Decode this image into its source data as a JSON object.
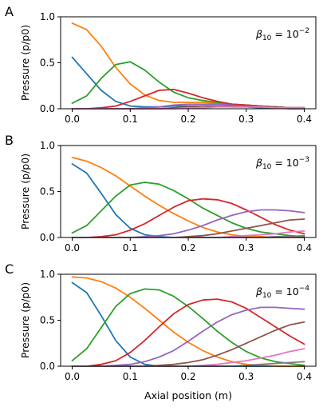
{
  "figure": {
    "shared_xlabel": "Axial position (m)",
    "ylabel": "Pressure (p/p0)"
  },
  "chart_data": [
    {
      "panel_label": "A",
      "type": "line",
      "annotation": {
        "base": "β",
        "sub": "10",
        "eq": " = 10",
        "sup": "−2"
      },
      "xlim": [
        0,
        0.4
      ],
      "ylim": [
        0,
        1.0
      ],
      "xticks": [
        "0.0",
        "0.1",
        "0.2",
        "0.3",
        "0.4"
      ],
      "yticks": [
        "0.0",
        "0.5",
        "1.0"
      ],
      "grid": false,
      "x": [
        0,
        0.025,
        0.05,
        0.075,
        0.1,
        0.125,
        0.15,
        0.175,
        0.2,
        0.225,
        0.25,
        0.275,
        0.3,
        0.325,
        0.35,
        0.375,
        0.4
      ],
      "series": [
        {
          "color": "#1f77b4",
          "values": [
            0.56,
            0.38,
            0.2,
            0.08,
            0.03,
            0.02,
            0.02,
            0.03,
            0.03,
            0.03,
            0.03,
            0.02,
            0.02,
            0.01,
            0.01,
            0.0,
            0.0
          ]
        },
        {
          "color": "#ff7f0e",
          "values": [
            0.93,
            0.86,
            0.68,
            0.45,
            0.27,
            0.15,
            0.09,
            0.07,
            0.07,
            0.07,
            0.06,
            0.05,
            0.04,
            0.03,
            0.02,
            0.01,
            0.01
          ]
        },
        {
          "color": "#2ca02c",
          "values": [
            0.06,
            0.14,
            0.33,
            0.48,
            0.51,
            0.42,
            0.29,
            0.18,
            0.12,
            0.09,
            0.07,
            0.05,
            0.04,
            0.03,
            0.02,
            0.01,
            0.01
          ]
        },
        {
          "color": "#d62728",
          "values": [
            0.0,
            0.0,
            0.01,
            0.03,
            0.08,
            0.14,
            0.2,
            0.21,
            0.17,
            0.12,
            0.08,
            0.05,
            0.04,
            0.03,
            0.02,
            0.01,
            0.01
          ]
        },
        {
          "color": "#9467bd",
          "values": [
            0.0,
            0.0,
            0.0,
            0.0,
            0.0,
            0.01,
            0.02,
            0.04,
            0.05,
            0.05,
            0.05,
            0.04,
            0.03,
            0.02,
            0.02,
            0.01,
            0.01
          ]
        },
        {
          "color": "#8c564b",
          "values": [
            0.0,
            0.0,
            0.0,
            0.0,
            0.0,
            0.0,
            0.0,
            0.01,
            0.02,
            0.03,
            0.03,
            0.03,
            0.03,
            0.02,
            0.02,
            0.01,
            0.01
          ]
        },
        {
          "color": "#e377c2",
          "values": [
            0.0,
            0.0,
            0.0,
            0.0,
            0.0,
            0.0,
            0.0,
            0.0,
            0.01,
            0.01,
            0.02,
            0.02,
            0.02,
            0.02,
            0.01,
            0.01,
            0.01
          ]
        }
      ]
    },
    {
      "panel_label": "B",
      "type": "line",
      "annotation": {
        "base": "β",
        "sub": "10",
        "eq": " = 10",
        "sup": "−3"
      },
      "xlim": [
        0,
        0.4
      ],
      "ylim": [
        0,
        1.0
      ],
      "xticks": [
        "0.0",
        "0.1",
        "0.2",
        "0.3",
        "0.4"
      ],
      "yticks": [
        "0.0",
        "0.5",
        "1.0"
      ],
      "grid": false,
      "x": [
        0,
        0.025,
        0.05,
        0.075,
        0.1,
        0.125,
        0.15,
        0.175,
        0.2,
        0.225,
        0.25,
        0.275,
        0.3,
        0.325,
        0.35,
        0.375,
        0.4
      ],
      "series": [
        {
          "color": "#1f77b4",
          "values": [
            0.8,
            0.7,
            0.48,
            0.25,
            0.1,
            0.03,
            0.01,
            0.0,
            0.0,
            0.0,
            0.0,
            0.0,
            0.0,
            0.0,
            0.0,
            0.0,
            0.0
          ]
        },
        {
          "color": "#ff7f0e",
          "values": [
            0.87,
            0.83,
            0.76,
            0.67,
            0.56,
            0.45,
            0.35,
            0.26,
            0.18,
            0.11,
            0.06,
            0.03,
            0.01,
            0.01,
            0.0,
            0.0,
            0.0
          ]
        },
        {
          "color": "#2ca02c",
          "values": [
            0.05,
            0.13,
            0.29,
            0.45,
            0.57,
            0.6,
            0.58,
            0.51,
            0.42,
            0.32,
            0.24,
            0.16,
            0.1,
            0.06,
            0.04,
            0.02,
            0.01
          ]
        },
        {
          "color": "#d62728",
          "values": [
            0.0,
            0.0,
            0.01,
            0.03,
            0.08,
            0.15,
            0.24,
            0.33,
            0.4,
            0.42,
            0.41,
            0.37,
            0.3,
            0.22,
            0.14,
            0.08,
            0.04
          ]
        },
        {
          "color": "#9467bd",
          "values": [
            0.0,
            0.0,
            0.0,
            0.0,
            0.0,
            0.01,
            0.02,
            0.04,
            0.08,
            0.13,
            0.19,
            0.24,
            0.28,
            0.3,
            0.3,
            0.29,
            0.27
          ]
        },
        {
          "color": "#8c564b",
          "values": [
            0.0,
            0.0,
            0.0,
            0.0,
            0.0,
            0.0,
            0.0,
            0.0,
            0.01,
            0.02,
            0.04,
            0.07,
            0.1,
            0.13,
            0.16,
            0.19,
            0.2
          ]
        },
        {
          "color": "#e377c2",
          "values": [
            0.0,
            0.0,
            0.0,
            0.0,
            0.0,
            0.0,
            0.0,
            0.0,
            0.0,
            0.0,
            0.0,
            0.01,
            0.02,
            0.03,
            0.04,
            0.06,
            0.07
          ]
        },
        {
          "color": "#7f7f7f",
          "values": [
            0.0,
            0.0,
            0.0,
            0.0,
            0.0,
            0.0,
            0.0,
            0.0,
            0.0,
            0.0,
            0.0,
            0.0,
            0.0,
            0.0,
            0.01,
            0.01,
            0.02
          ]
        }
      ]
    },
    {
      "panel_label": "C",
      "type": "line",
      "annotation": {
        "base": "β",
        "sub": "10",
        "eq": " = 10",
        "sup": "−4"
      },
      "xlim": [
        0,
        0.4
      ],
      "ylim": [
        0,
        1.0
      ],
      "xticks": [
        "0.0",
        "0.1",
        "0.2",
        "0.3",
        "0.4"
      ],
      "yticks": [
        "0.0",
        "0.5",
        "1.0"
      ],
      "grid": false,
      "x": [
        0,
        0.025,
        0.05,
        0.075,
        0.1,
        0.125,
        0.15,
        0.175,
        0.2,
        0.225,
        0.25,
        0.275,
        0.3,
        0.325,
        0.35,
        0.375,
        0.4
      ],
      "series": [
        {
          "color": "#1f77b4",
          "values": [
            0.91,
            0.8,
            0.55,
            0.28,
            0.1,
            0.02,
            0.0,
            0.0,
            0.0,
            0.0,
            0.0,
            0.0,
            0.0,
            0.0,
            0.0,
            0.0,
            0.0
          ]
        },
        {
          "color": "#ff7f0e",
          "values": [
            0.97,
            0.96,
            0.92,
            0.85,
            0.75,
            0.63,
            0.5,
            0.37,
            0.26,
            0.17,
            0.1,
            0.05,
            0.02,
            0.01,
            0.0,
            0.0,
            0.0
          ]
        },
        {
          "color": "#2ca02c",
          "values": [
            0.06,
            0.19,
            0.42,
            0.65,
            0.79,
            0.84,
            0.83,
            0.76,
            0.65,
            0.52,
            0.38,
            0.26,
            0.16,
            0.09,
            0.05,
            0.03,
            0.01
          ]
        },
        {
          "color": "#d62728",
          "values": [
            0.0,
            0.0,
            0.02,
            0.06,
            0.15,
            0.28,
            0.43,
            0.57,
            0.67,
            0.72,
            0.73,
            0.7,
            0.63,
            0.53,
            0.43,
            0.33,
            0.24
          ]
        },
        {
          "color": "#9467bd",
          "values": [
            0.0,
            0.0,
            0.0,
            0.01,
            0.02,
            0.05,
            0.1,
            0.17,
            0.27,
            0.38,
            0.48,
            0.56,
            0.61,
            0.64,
            0.64,
            0.63,
            0.62
          ]
        },
        {
          "color": "#8c564b",
          "values": [
            0.0,
            0.0,
            0.0,
            0.0,
            0.0,
            0.0,
            0.01,
            0.02,
            0.04,
            0.07,
            0.12,
            0.18,
            0.25,
            0.32,
            0.39,
            0.45,
            0.48
          ]
        },
        {
          "color": "#e377c2",
          "values": [
            0.0,
            0.0,
            0.0,
            0.0,
            0.0,
            0.0,
            0.0,
            0.0,
            0.0,
            0.01,
            0.02,
            0.04,
            0.06,
            0.09,
            0.12,
            0.16,
            0.19
          ]
        },
        {
          "color": "#7f7f7f",
          "values": [
            0.0,
            0.0,
            0.0,
            0.0,
            0.0,
            0.0,
            0.0,
            0.0,
            0.0,
            0.0,
            0.0,
            0.0,
            0.01,
            0.02,
            0.03,
            0.04,
            0.05
          ]
        }
      ]
    }
  ]
}
